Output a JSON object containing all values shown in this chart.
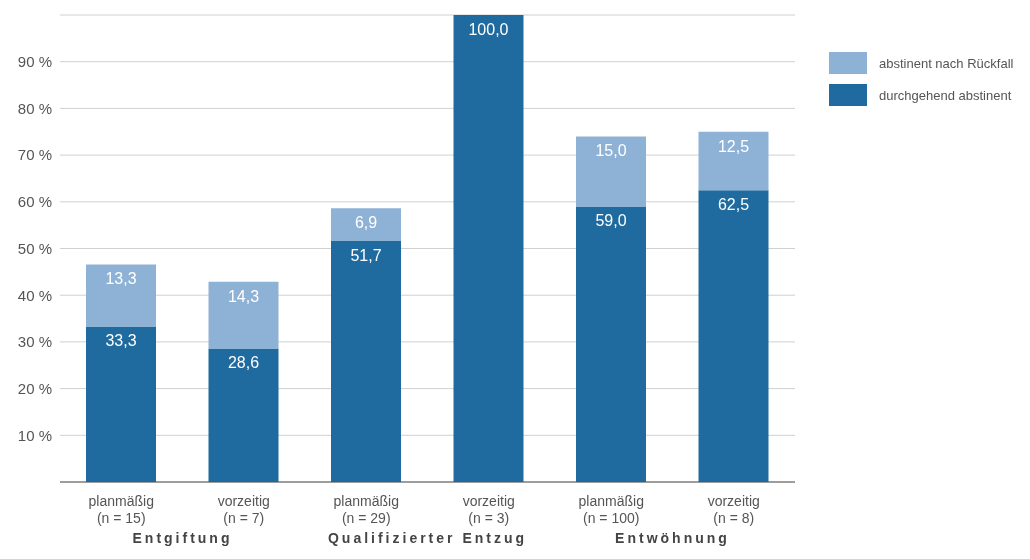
{
  "chart_data": {
    "type": "bar",
    "stacked": true,
    "categories": [
      "planmäßig\n(n = 15)",
      "vorzeitig\n(n = 7)",
      "planmäßig\n(n = 29)",
      "vorzeitig\n(n = 3)",
      "planmäßig\n(n = 100)",
      "vorzeitig\n(n = 8)"
    ],
    "series": [
      {
        "name": "durchgehend abstinent",
        "color": "#1f6a9e",
        "values": [
          33.3,
          28.6,
          51.7,
          100.0,
          59.0,
          62.5
        ],
        "value_labels": [
          "33,3",
          "28,6",
          "51,7",
          "100,0",
          "59,0",
          "62,5"
        ]
      },
      {
        "name": "abstinent nach Rückfall",
        "color": "#8db2d6",
        "values": [
          13.3,
          14.3,
          6.9,
          null,
          15.0,
          12.5
        ],
        "value_labels": [
          "13,3",
          "14,3",
          "6,9",
          null,
          "15,0",
          "12,5"
        ]
      }
    ],
    "ylim": [
      0,
      100
    ],
    "yticks": [
      {
        "value": 10,
        "label": "10 %"
      },
      {
        "value": 20,
        "label": "20 %"
      },
      {
        "value": 30,
        "label": "30 %"
      },
      {
        "value": 40,
        "label": "40 %"
      },
      {
        "value": 50,
        "label": "50 %"
      },
      {
        "value": 60,
        "label": "60 %"
      },
      {
        "value": 70,
        "label": "70 %"
      },
      {
        "value": 80,
        "label": "80 %"
      },
      {
        "value": 90,
        "label": "90 %"
      }
    ],
    "grid": "y",
    "legend": "top right",
    "annotations": [
      "Entgiftung",
      "Qualifizierter Entzug",
      "Entwöhnung"
    ]
  }
}
